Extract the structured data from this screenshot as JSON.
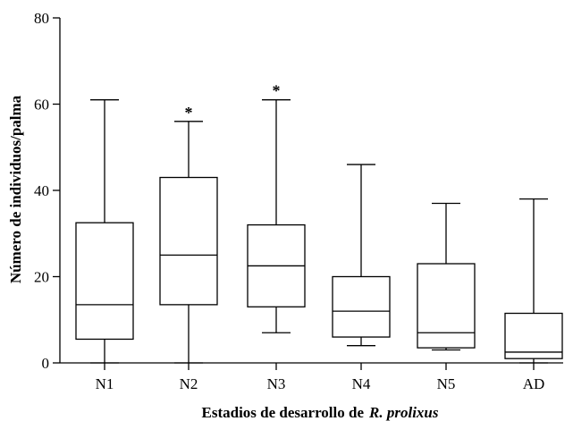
{
  "chart_data": {
    "type": "box",
    "xlabel": "Estadios de desarrollo de",
    "xlabel_species": "R. prolixus",
    "ylabel": "Número de individuos/palma",
    "ylim": [
      0,
      80
    ],
    "yticks": [
      0,
      20,
      40,
      60,
      80
    ],
    "categories": [
      "N1",
      "N2",
      "N3",
      "N4",
      "N5",
      "AD"
    ],
    "boxes": [
      {
        "category": "N1",
        "min": 0,
        "q1": 5.5,
        "median": 13.5,
        "q3": 32.5,
        "max": 61,
        "marker": ""
      },
      {
        "category": "N2",
        "min": 0,
        "q1": 13.5,
        "median": 25,
        "q3": 43,
        "max": 56,
        "marker": "*"
      },
      {
        "category": "N3",
        "min": 7,
        "q1": 13,
        "median": 22.5,
        "q3": 32,
        "max": 61,
        "marker": "*"
      },
      {
        "category": "N4",
        "min": 4,
        "q1": 6,
        "median": 12,
        "q3": 20,
        "max": 46,
        "marker": ""
      },
      {
        "category": "N5",
        "min": 3,
        "q1": 3.5,
        "median": 7,
        "q3": 23,
        "max": 37,
        "marker": ""
      },
      {
        "category": "AD",
        "min": 0,
        "q1": 1,
        "median": 2.5,
        "q3": 11.5,
        "max": 38,
        "marker": ""
      }
    ],
    "colors": {
      "stroke": "#000000",
      "fill": "#ffffff"
    }
  }
}
